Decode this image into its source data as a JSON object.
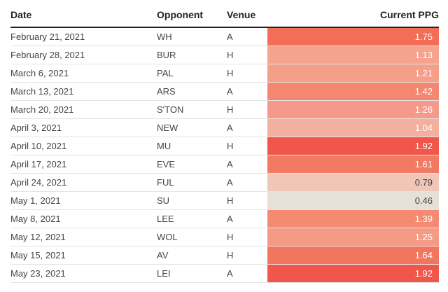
{
  "table": {
    "header": [
      "Date",
      "Opponent",
      "Venue",
      "Current PPG"
    ],
    "rows": [
      [
        "February 21, 2021",
        "WH",
        "A",
        "1.75"
      ],
      [
        "February 28, 2021",
        "BUR",
        "H",
        "1.13"
      ],
      [
        "March 6, 2021",
        "PAL",
        "H",
        "1.21"
      ],
      [
        "March 13, 2021",
        "ARS",
        "A",
        "1.42"
      ],
      [
        "March 20, 2021",
        "S'TON",
        "H",
        "1.26"
      ],
      [
        "April 3, 2021",
        "NEW",
        "A",
        "1.04"
      ],
      [
        "April 10, 2021",
        "MU",
        "H",
        "1.92"
      ],
      [
        "April 17, 2021",
        "EVE",
        "A",
        "1.61"
      ],
      [
        "April 24, 2021",
        "FUL",
        "A",
        "0.79"
      ],
      [
        "May 1, 2021",
        "SU",
        "H",
        "0.46"
      ],
      [
        "May 8, 2021",
        "LEE",
        "A",
        "1.39"
      ],
      [
        "May 12, 2021",
        "WOL",
        "H",
        "1.25"
      ],
      [
        "May 15, 2021",
        "AV",
        "H",
        "1.64"
      ],
      [
        "May 23, 2021",
        "LEI",
        "A",
        "1.92"
      ]
    ],
    "cell_colors": [
      "#f26e56",
      "#f5a38f",
      "#f59e88",
      "#f4876f",
      "#f5998a",
      "#f3b09f",
      "#f0564a",
      "#f27a62",
      "#efc6b8",
      "#e6e0d8",
      "#f48a72",
      "#f59b85",
      "#f2765e",
      "#f0564a"
    ],
    "text_colors": [
      "#ffffff",
      "#ffffff",
      "#ffffff",
      "#ffffff",
      "#ffffff",
      "#ffffff",
      "#ffffff",
      "#ffffff",
      "#444444",
      "#444444",
      "#ffffff",
      "#ffffff",
      "#ffffff",
      "#ffffff"
    ]
  }
}
